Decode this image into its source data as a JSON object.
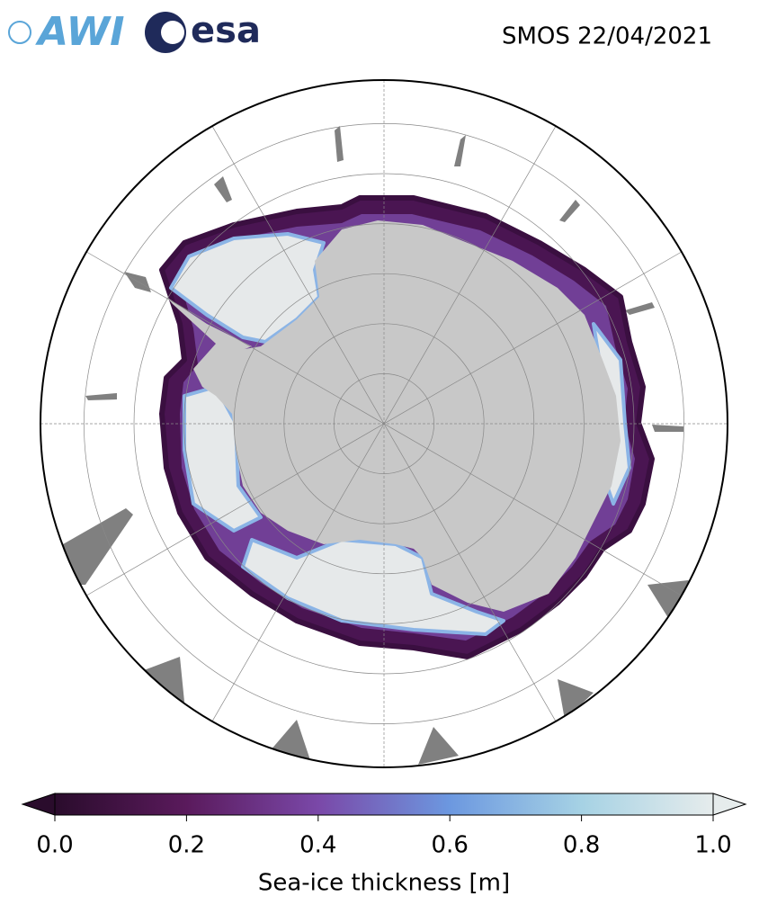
{
  "logos": {
    "left": "AWI",
    "right": "esa"
  },
  "title": "SMOS 22/04/2021",
  "colorbar": {
    "label": "Sea-ice thickness [m]",
    "lim": [
      0,
      1
    ],
    "ticks": [
      {
        "value": 0,
        "label": "0.0"
      },
      {
        "value": 0.2,
        "label": "0.2"
      },
      {
        "value": 0.4,
        "label": "0.4"
      },
      {
        "value": 0.6,
        "label": "0.6"
      },
      {
        "value": 0.8,
        "label": "0.8"
      },
      {
        "value": 1,
        "label": "1.0"
      }
    ],
    "colors": [
      "#2a0c2c",
      "#5a1a5c",
      "#7a48a8",
      "#6c98e0",
      "#a6d2e4",
      "#e6ecec"
    ]
  }
}
